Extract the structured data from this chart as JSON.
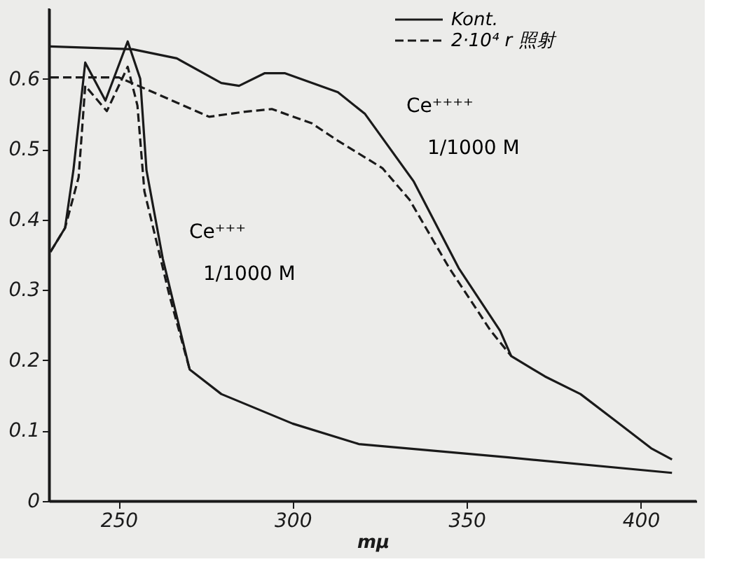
{
  "chart_data": {
    "type": "line",
    "xlabel": "mμ",
    "xlim": [
      230,
      416
    ],
    "ylim": [
      0,
      0.7
    ],
    "xticks": [
      250,
      300,
      350,
      400
    ],
    "yticks": [
      0,
      0.1,
      0.2,
      0.3,
      0.4,
      0.5,
      0.6
    ],
    "grid": false,
    "legend": "top right",
    "marker": "none",
    "annotations": [
      "Ce⁺⁺⁺",
      "1/1000 M",
      "Ce⁺⁺⁺⁺",
      "1/1000 M"
    ],
    "series": [
      {
        "name": "Kont.",
        "color": "#1a1a1a",
        "line_style": "solid",
        "x": [
          230.4,
          234.6,
          237,
          240.4,
          246.2,
          252.6,
          256.2,
          258,
          262.7,
          270.4,
          279.5,
          300,
          319,
          362,
          409
        ],
        "values": [
          0.354,
          0.388,
          0.47,
          0.623,
          0.569,
          0.653,
          0.6,
          0.47,
          0.344,
          0.187,
          0.152,
          0.11,
          0.081,
          0.062,
          0.04
        ]
      },
      {
        "name": "2·10⁴ r 照射",
        "color": "#1a1a1a",
        "line_style": "dashed",
        "x": [
          230.4,
          234.6,
          238.5,
          240.4,
          246.6,
          252.6,
          255.4,
          257.4,
          264.6,
          270.4
        ],
        "values": [
          0.354,
          0.388,
          0.46,
          0.59,
          0.554,
          0.617,
          0.562,
          0.44,
          0.292,
          0.187
        ]
      },
      {
        "color": "#1a1a1a",
        "line_style": "solid",
        "x": [
          230.4,
          254,
          266.7,
          279.5,
          284.6,
          292,
          297.7,
          313,
          320.8,
          334.8,
          347.7,
          359.6,
          362.8,
          372.5,
          382.7,
          393,
          403,
          409
        ],
        "values": [
          0.646,
          0.642,
          0.629,
          0.594,
          0.59,
          0.608,
          0.608,
          0.581,
          0.55,
          0.454,
          0.331,
          0.242,
          0.206,
          0.177,
          0.152,
          0.113,
          0.075,
          0.059
        ]
      },
      {
        "color": "#1a1a1a",
        "line_style": "dashed",
        "x": [
          230.4,
          250,
          258,
          276,
          286,
          294,
          305.4,
          313,
          325.8,
          333.6,
          345,
          356.9,
          362.8
        ],
        "values": [
          0.602,
          0.602,
          0.585,
          0.546,
          0.553,
          0.557,
          0.537,
          0.512,
          0.473,
          0.428,
          0.331,
          0.242,
          0.206
        ]
      }
    ]
  }
}
